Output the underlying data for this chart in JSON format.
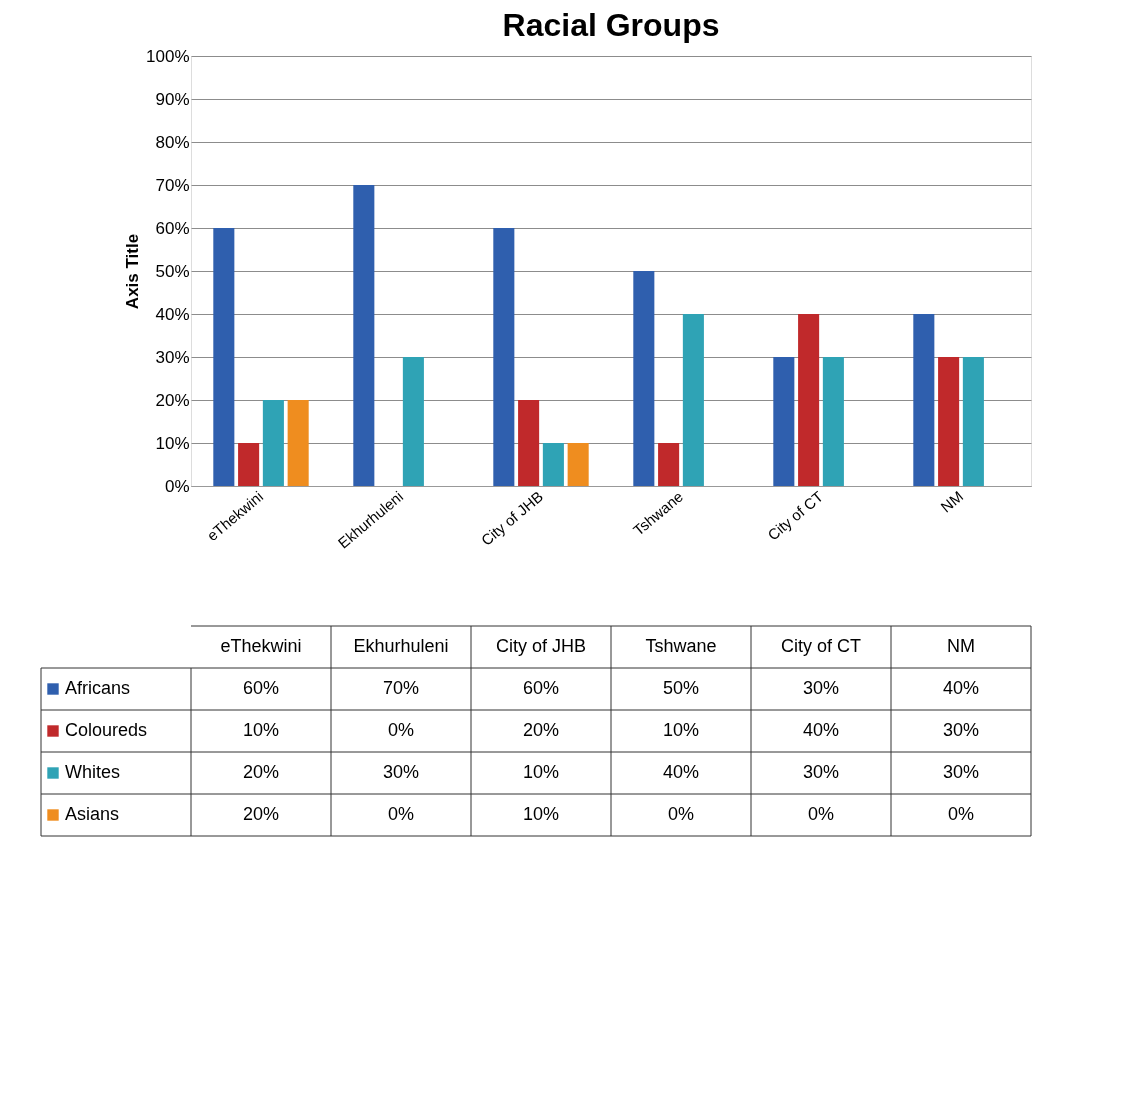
{
  "chart_data": {
    "type": "bar",
    "title": "Racial Groups",
    "ylabel": "Axis Title",
    "categories": [
      "eThekwini",
      "Ekhurhuleni",
      "City of JHB",
      "Tshwane",
      "City of CT",
      "NM"
    ],
    "series": [
      {
        "name": "Africans",
        "color": "#2f5fae",
        "values": [
          60,
          70,
          60,
          50,
          30,
          40
        ],
        "value_labels": [
          "60%",
          "70%",
          "60%",
          "50%",
          "30%",
          "40%"
        ]
      },
      {
        "name": "Coloureds",
        "color": "#c0292b",
        "values": [
          10,
          0,
          20,
          10,
          40,
          30
        ],
        "value_labels": [
          "10%",
          "0%",
          "20%",
          "10%",
          "40%",
          "30%"
        ]
      },
      {
        "name": "Whites",
        "color": "#2fa3b5",
        "values": [
          20,
          30,
          10,
          40,
          30,
          30
        ],
        "value_labels": [
          "20%",
          "30%",
          "10%",
          "40%",
          "30%",
          "30%"
        ]
      },
      {
        "name": "Asians",
        "color": "#ef8d1f",
        "values": [
          20,
          0,
          10,
          0,
          0,
          0
        ],
        "value_labels": [
          "20%",
          "0%",
          "10%",
          "0%",
          "0%",
          "0%"
        ]
      }
    ],
    "ylim": [
      0,
      100
    ],
    "yticks": [
      {
        "value": 0,
        "label": "0%"
      },
      {
        "value": 10,
        "label": "10%"
      },
      {
        "value": 20,
        "label": "20%"
      },
      {
        "value": 30,
        "label": "30%"
      },
      {
        "value": 40,
        "label": "40%"
      },
      {
        "value": 50,
        "label": "50%"
      },
      {
        "value": 60,
        "label": "60%"
      },
      {
        "value": 70,
        "label": "70%"
      },
      {
        "value": 80,
        "label": "80%"
      },
      {
        "value": 90,
        "label": "90%"
      },
      {
        "value": 100,
        "label": "100%"
      }
    ],
    "grid": "y",
    "legend": "bottom"
  }
}
